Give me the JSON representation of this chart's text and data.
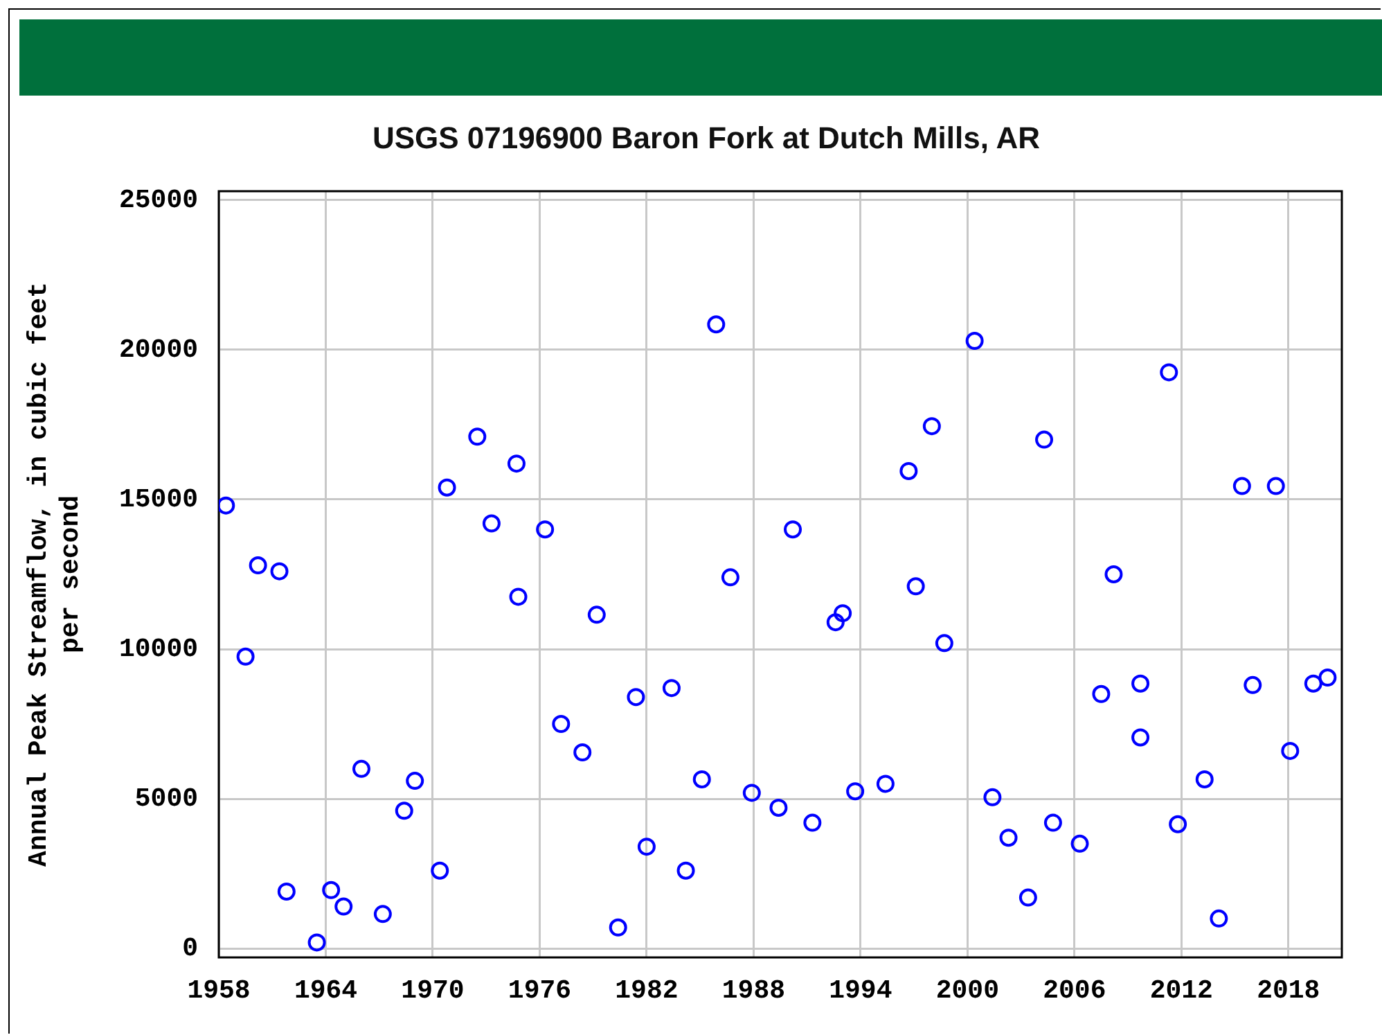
{
  "chart_data": {
    "type": "scatter",
    "title": "USGS 07196900 Baron Fork at Dutch Mills, AR",
    "ylabel": "Annual Peak Streamflow, in cubic feet per second",
    "x": [
      1958.4,
      1959.5,
      1960.2,
      1961.4,
      1961.8,
      1963.5,
      1964.3,
      1965.0,
      1966.0,
      1967.2,
      1968.4,
      1969.0,
      1970.4,
      1970.8,
      1972.5,
      1973.3,
      1974.7,
      1974.8,
      1976.3,
      1977.2,
      1978.4,
      1979.2,
      1980.4,
      1981.4,
      1982.0,
      1983.4,
      1984.2,
      1985.1,
      1985.9,
      1986.7,
      1987.9,
      1989.4,
      1990.2,
      1991.3,
      1992.6,
      1993.0,
      1993.7,
      1995.4,
      1996.7,
      1997.1,
      1998.0,
      1998.7,
      2000.4,
      2001.4,
      2002.3,
      2003.4,
      2004.3,
      2004.8,
      2006.3,
      2007.5,
      2008.2,
      2009.7,
      2009.7,
      2011.3,
      2011.8,
      2013.3,
      2014.1,
      2015.4,
      2016.0,
      2017.3,
      2018.1,
      2019.4,
      2020.2
    ],
    "values": [
      14800,
      9750,
      12800,
      12600,
      1900,
      200,
      1950,
      1400,
      6000,
      1150,
      4600,
      5600,
      2600,
      15400,
      17100,
      14200,
      16200,
      11750,
      14000,
      7500,
      6550,
      11150,
      700,
      8400,
      3400,
      8700,
      2600,
      5650,
      20850,
      12400,
      5200,
      4700,
      14000,
      4200,
      10900,
      11200,
      5250,
      5500,
      15950,
      12100,
      17450,
      10200,
      20300,
      5050,
      3700,
      1700,
      17000,
      4200,
      3500,
      8500,
      12500,
      8850,
      7050,
      19250,
      4150,
      5650,
      1000,
      15450,
      8800,
      15450,
      6600,
      8850,
      9050
    ],
    "color": "#0000ff",
    "marker": "circle",
    "xlim": [
      1958,
      2021
    ],
    "ylim": [
      -300,
      25300
    ],
    "xticks": [
      1958,
      1964,
      1970,
      1976,
      1982,
      1988,
      1994,
      2000,
      2006,
      2012,
      2018
    ],
    "yticks": [
      0,
      5000,
      10000,
      15000,
      20000,
      25000
    ],
    "grid": true
  }
}
